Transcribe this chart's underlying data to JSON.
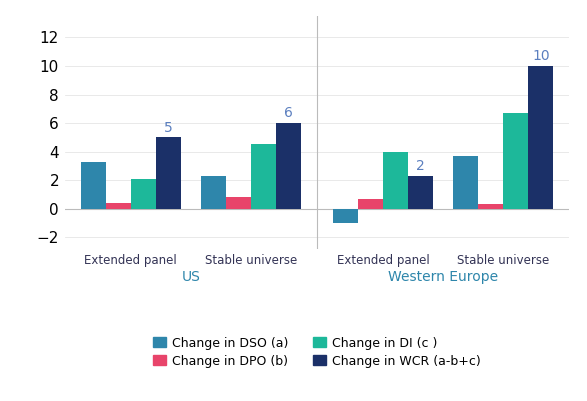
{
  "subgroup_labels": [
    "Extended panel",
    "Stable universe",
    "Extended panel",
    "Stable universe"
  ],
  "region_labels": [
    "US",
    "Western Europe"
  ],
  "series": {
    "DSO": [
      3.3,
      2.3,
      -1.0,
      3.7
    ],
    "DPO": [
      0.4,
      0.8,
      0.7,
      0.3
    ],
    "DI": [
      2.1,
      4.5,
      4.0,
      6.7
    ],
    "WCR": [
      5.0,
      6.0,
      2.3,
      10.0
    ]
  },
  "wcr_labels": [
    "5",
    "6",
    "2",
    "10"
  ],
  "colors": {
    "DSO": "#2E86AB",
    "DPO": "#E8446A",
    "DI": "#1DB89A",
    "WCR": "#1B3068"
  },
  "ylim": [
    -2.8,
    13.5
  ],
  "yticks": [
    -2,
    0,
    2,
    4,
    6,
    8,
    10,
    12
  ],
  "legend_labels": [
    "Change in DSO (a)",
    "Change in DPO (b)",
    "Change in DI (c )",
    "Change in WCR (a-b+c)"
  ],
  "bar_width": 0.17,
  "wcr_label_color": "#5B7FBF",
  "region_label_color": "#2E86AB",
  "subgroup_label_color": "#333355",
  "background_color": "#FFFFFF"
}
